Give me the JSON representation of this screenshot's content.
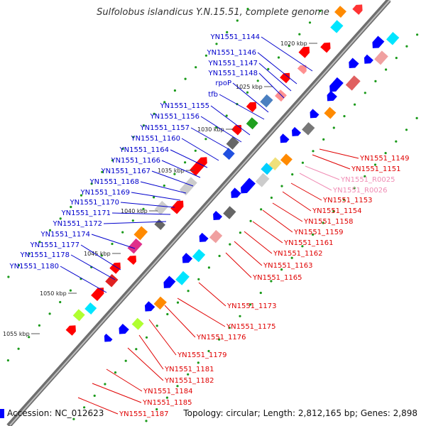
{
  "title": "Sulfolobus islandicus Y.N.15.51, complete genome",
  "footer": {
    "accession": "Accession: NC_012623",
    "info": "Topology: circular; Length: 2,812,165 bp; Genes: 2,898"
  },
  "kbp_ticks": [
    "1020 kbp",
    "1025 kbp",
    "1030 kbp",
    "1035 kbp",
    "1040 kbp",
    "1045 kbp",
    "1050 kbp",
    "1055 kbp"
  ],
  "forward_labels": [
    "YN1551_1144",
    "YN1551_1146",
    "YN1551_1147",
    "YN1551_1148",
    "rpoP",
    "tfb",
    "YN1551_1155",
    "YN1551_1156",
    "YN1551_1157",
    "YN1551_1160",
    "YN1551_1164",
    "YN1551_1166",
    "YN1551_1167",
    "YN1551_1168",
    "YN1551_1169",
    "YN1551_1170",
    "YN1551_1171",
    "YN1551_1172",
    "YN1551_1174",
    "YN1551_1177",
    "YN1551_1178",
    "YN1551_1180"
  ],
  "reverse_labels": [
    "YN1551_1149",
    "YN1551_1151",
    "YN1551_R0025",
    "YN1551_R0026",
    "YN1551_1153",
    "YN1551_1154",
    "YN1551_1158",
    "YN1551_1159",
    "YN1551_1161",
    "YN1551_1162",
    "YN1551_1163",
    "YN1551_1165",
    "YN1551_1173",
    "YN1551_1175",
    "YN1551_1176",
    "YN1551_1179",
    "YN1551_1181",
    "YN1551_1182",
    "YN1551_1184",
    "YN1551_1185",
    "YN1551_1187"
  ],
  "colors": {
    "forward_label": "#0000cc",
    "reverse_label": "#e00000",
    "rna_label": "#f08cb4",
    "forward_cds": "#0000ff",
    "reverse_cds": "#ff0000",
    "backbone": "#888888",
    "gc_skew": "#33aa33"
  }
}
